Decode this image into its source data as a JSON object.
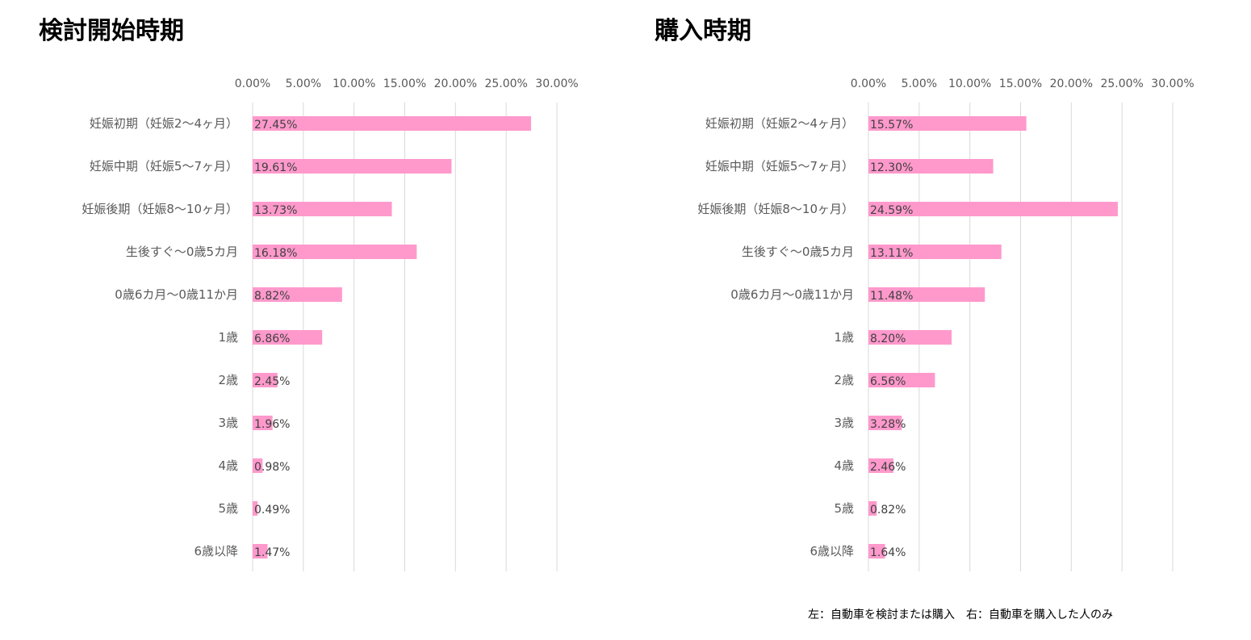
{
  "footnote": "左：自動車を検討または購入　右：自動車を購入した人のみ",
  "bar_color": "#ff99cc",
  "grid_color": "#d9d9d9",
  "chart_data": [
    {
      "type": "bar",
      "orientation": "horizontal",
      "title": "検討開始時期",
      "xlim": [
        0,
        30
      ],
      "ticks": [
        "0.00%",
        "5.00%",
        "10.00%",
        "15.00%",
        "20.00%",
        "25.00%",
        "30.00%"
      ],
      "grid": true,
      "categories": [
        "妊娠初期（妊娠2～4ヶ月）",
        "妊娠中期（妊娠5～7ヶ月）",
        "妊娠後期（妊娠8～10ヶ月）",
        "生後すぐ～0歳5カ月",
        "0歳6カ月～0歳11か月",
        "1歳",
        "2歳",
        "3歳",
        "4歳",
        "5歳",
        "6歳以降"
      ],
      "values": [
        27.45,
        19.61,
        13.73,
        16.18,
        8.82,
        6.86,
        2.45,
        1.96,
        0.98,
        0.49,
        1.47
      ],
      "labels": [
        "27.45%",
        "19.61%",
        "13.73%",
        "16.18%",
        "8.82%",
        "6.86%",
        "2.45%",
        "1.96%",
        "0.98%",
        "0.49%",
        "1.47%"
      ]
    },
    {
      "type": "bar",
      "orientation": "horizontal",
      "title": "購入時期",
      "xlim": [
        0,
        30
      ],
      "ticks": [
        "0.00%",
        "5.00%",
        "10.00%",
        "15.00%",
        "20.00%",
        "25.00%",
        "30.00%"
      ],
      "grid": true,
      "categories": [
        "妊娠初期（妊娠2～4ヶ月）",
        "妊娠中期（妊娠5～7ヶ月）",
        "妊娠後期（妊娠8～10ヶ月）",
        "生後すぐ～0歳5カ月",
        "0歳6カ月～0歳11か月",
        "1歳",
        "2歳",
        "3歳",
        "4歳",
        "5歳",
        "6歳以降"
      ],
      "values": [
        15.57,
        12.3,
        24.59,
        13.11,
        11.48,
        8.2,
        6.56,
        3.28,
        2.46,
        0.82,
        1.64
      ],
      "labels": [
        "15.57%",
        "12.30%",
        "24.59%",
        "13.11%",
        "11.48%",
        "8.20%",
        "6.56%",
        "3.28%",
        "2.46%",
        "0.82%",
        "1.64%"
      ]
    }
  ]
}
